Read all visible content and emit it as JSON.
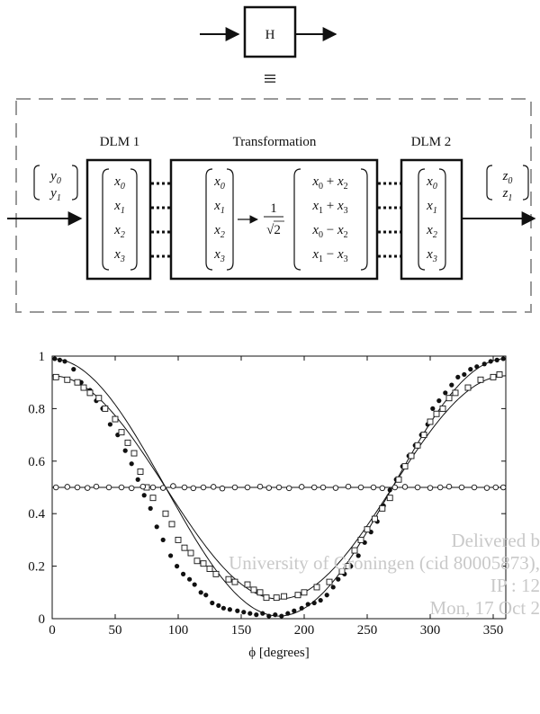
{
  "diagram": {
    "top_block_label": "H",
    "equiv_symbol": "≡",
    "dlm1_label": "DLM 1",
    "transform_label": "Transformation",
    "dlm2_label": "DLM 2",
    "input_vector": [
      "y0",
      "y1"
    ],
    "output_vector": [
      "z0",
      "z1"
    ],
    "dlm1_vector": [
      "x0",
      "x1",
      "x2",
      "x3"
    ],
    "transform_input": [
      "x0",
      "x1",
      "x2",
      "x3"
    ],
    "transform_factor": "1/√2",
    "transform_output": [
      "x0 + x2",
      "x1 + x3",
      "x0 − x2",
      "x1 − x3"
    ],
    "dlm2_vector": [
      "x0",
      "x1",
      "x2",
      "x3"
    ]
  },
  "chart_data": {
    "type": "scatter",
    "xlabel": "ϕ [degrees]",
    "ylabel": "",
    "xlim": [
      0,
      360
    ],
    "ylim": [
      0,
      1
    ],
    "xticks": [
      0,
      50,
      100,
      150,
      200,
      250,
      300,
      350
    ],
    "yticks": [
      0,
      0.2,
      0.4,
      0.6,
      0.8,
      1
    ],
    "ytick_labels": [
      "0",
      "0.2",
      "0.4",
      "0.6",
      "0.8",
      "1"
    ],
    "grid": false,
    "legend": "none",
    "series": [
      {
        "marker": "filled-circle",
        "x": [
          2,
          6,
          10,
          17,
          23,
          30,
          35,
          40,
          46,
          52,
          58,
          63,
          68,
          73,
          78,
          83,
          88,
          94,
          99,
          104,
          109,
          113,
          118,
          122,
          127,
          132,
          136,
          141,
          147,
          152,
          157,
          162,
          167,
          172,
          177,
          182,
          187,
          192,
          198,
          203,
          208,
          213,
          218,
          223,
          227,
          232,
          237,
          243,
          248,
          253,
          258,
          263,
          268,
          273,
          278,
          283,
          288,
          293,
          298,
          302,
          307,
          312,
          317,
          322,
          327,
          332,
          337,
          343,
          348,
          353,
          358
        ],
        "y": [
          0.99,
          0.985,
          0.98,
          0.95,
          0.9,
          0.87,
          0.83,
          0.8,
          0.74,
          0.7,
          0.64,
          0.59,
          0.53,
          0.47,
          0.42,
          0.35,
          0.3,
          0.24,
          0.2,
          0.17,
          0.15,
          0.13,
          0.1,
          0.09,
          0.06,
          0.05,
          0.04,
          0.035,
          0.03,
          0.025,
          0.02,
          0.015,
          0.02,
          0.01,
          0.015,
          0.01,
          0.02,
          0.03,
          0.04,
          0.055,
          0.06,
          0.07,
          0.09,
          0.12,
          0.15,
          0.17,
          0.2,
          0.24,
          0.29,
          0.33,
          0.37,
          0.43,
          0.49,
          0.53,
          0.58,
          0.62,
          0.66,
          0.7,
          0.74,
          0.8,
          0.83,
          0.86,
          0.89,
          0.92,
          0.93,
          0.95,
          0.96,
          0.97,
          0.98,
          0.985,
          0.99
        ]
      },
      {
        "marker": "open-square",
        "x": [
          3,
          12,
          20,
          25,
          30,
          37,
          42,
          50,
          55,
          60,
          65,
          70,
          75,
          80,
          90,
          95,
          100,
          105,
          110,
          115,
          120,
          125,
          130,
          140,
          145,
          155,
          160,
          165,
          170,
          178,
          184,
          195,
          200,
          210,
          220,
          230,
          235,
          240,
          245,
          250,
          256,
          262,
          268,
          275,
          280,
          285,
          290,
          295,
          300,
          305,
          310,
          315,
          320,
          330,
          340,
          350,
          355
        ],
        "y": [
          0.92,
          0.91,
          0.9,
          0.88,
          0.86,
          0.84,
          0.8,
          0.76,
          0.71,
          0.67,
          0.63,
          0.56,
          0.5,
          0.46,
          0.4,
          0.36,
          0.3,
          0.27,
          0.25,
          0.22,
          0.21,
          0.19,
          0.17,
          0.15,
          0.14,
          0.13,
          0.11,
          0.1,
          0.08,
          0.08,
          0.085,
          0.09,
          0.1,
          0.12,
          0.14,
          0.18,
          0.2,
          0.26,
          0.3,
          0.34,
          0.38,
          0.42,
          0.46,
          0.53,
          0.58,
          0.62,
          0.66,
          0.7,
          0.75,
          0.78,
          0.8,
          0.84,
          0.86,
          0.88,
          0.91,
          0.92,
          0.93
        ]
      },
      {
        "marker": "open-circle",
        "x": [
          3,
          12,
          20,
          28,
          35,
          45,
          55,
          63,
          72,
          80,
          88,
          96,
          105,
          112,
          120,
          128,
          135,
          145,
          155,
          165,
          172,
          180,
          188,
          198,
          208,
          215,
          225,
          235,
          245,
          255,
          262,
          272,
          280,
          290,
          300,
          308,
          315,
          325,
          335,
          345,
          352,
          358
        ],
        "y": [
          0.5,
          0.502,
          0.5,
          0.498,
          0.503,
          0.5,
          0.5,
          0.497,
          0.503,
          0.5,
          0.498,
          0.505,
          0.5,
          0.497,
          0.5,
          0.502,
          0.496,
          0.5,
          0.5,
          0.503,
          0.498,
          0.5,
          0.497,
          0.502,
          0.5,
          0.5,
          0.498,
          0.503,
          0.5,
          0.5,
          0.497,
          0.5,
          0.502,
          0.5,
          0.498,
          0.5,
          0.503,
          0.5,
          0.5,
          0.498,
          0.5,
          0.5
        ]
      }
    ],
    "curves": [
      {
        "name_hidden": true,
        "formula": "0.5 + 0.49*cos(phi)"
      },
      {
        "name_hidden": true,
        "formula": "0.5 + 0.425*cos(phi)"
      },
      {
        "name_hidden": true,
        "formula": "0.5"
      }
    ]
  },
  "watermark": {
    "lines": [
      "Delivered b",
      "University of Groningen (cid 80005873),",
      "IP : 12",
      "Mon, 17 Oct 2"
    ]
  }
}
